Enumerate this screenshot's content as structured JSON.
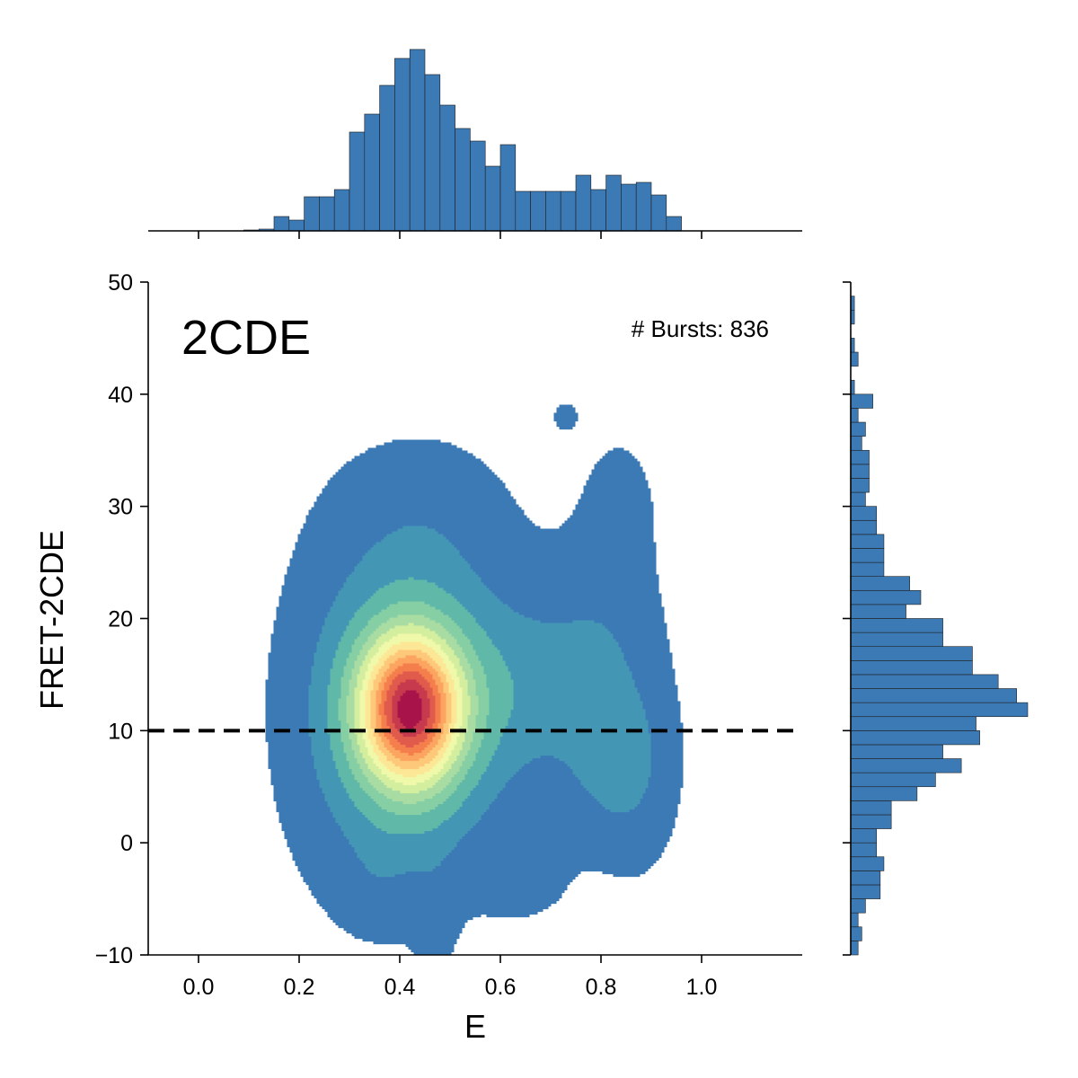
{
  "chart_data": {
    "type": "kde-joint",
    "xlabel": "E",
    "ylabel": "FRET-2CDE",
    "xlim": [
      -0.1,
      1.2
    ],
    "ylim": [
      -10,
      50
    ],
    "xticks": [
      0.0,
      0.2,
      0.4,
      0.6,
      0.8,
      1.0
    ],
    "xtick_labels": [
      "0.0",
      "0.2",
      "0.4",
      "0.6",
      "0.8",
      "1.0"
    ],
    "yticks": [
      -10,
      0,
      10,
      20,
      30,
      40,
      50
    ],
    "ytick_labels": [
      "−10",
      "0",
      "10",
      "20",
      "30",
      "40",
      "50"
    ],
    "annotation_label": "2CDE",
    "burst_text": "# Bursts: 836",
    "threshold_y": 10,
    "colormap": [
      "#3c7ab6",
      "#4397b5",
      "#5fb8a8",
      "#86cea4",
      "#a9dca3",
      "#d3ee9f",
      "#f0f8a9",
      "#fbe795",
      "#fdc879",
      "#fca561",
      "#f57e4d",
      "#e15b4c",
      "#c73a4e",
      "#a8144a"
    ],
    "kde_levels": [
      0.02,
      0.1,
      0.18,
      0.26,
      0.33,
      0.4,
      0.47,
      0.54,
      0.61,
      0.68,
      0.75,
      0.82,
      0.89,
      0.95
    ],
    "components": [
      {
        "e": 0.42,
        "c": 12.0,
        "se": 0.068,
        "sc": 4.6,
        "w": 1.0
      },
      {
        "e": 0.43,
        "c": 11.5,
        "se": 0.11,
        "sc": 8.0,
        "w": 0.45
      },
      {
        "e": 0.3,
        "c": 12.0,
        "se": 0.09,
        "sc": 10.0,
        "w": 0.1
      },
      {
        "e": 0.45,
        "c": 28.0,
        "se": 0.11,
        "sc": 5.0,
        "w": 0.09
      },
      {
        "e": 0.6,
        "c": 14.0,
        "se": 0.1,
        "sc": 6.0,
        "w": 0.12
      },
      {
        "e": 0.74,
        "c": 14.0,
        "se": 0.09,
        "sc": 6.0,
        "w": 0.13
      },
      {
        "e": 0.83,
        "c": 7.0,
        "se": 0.06,
        "sc": 4.5,
        "w": 0.15
      },
      {
        "e": 0.82,
        "c": 19.0,
        "se": 0.065,
        "sc": 9.0,
        "w": 0.07
      },
      {
        "e": 0.88,
        "c": 6.0,
        "se": 0.05,
        "sc": 6.0,
        "w": 0.05
      },
      {
        "e": 0.84,
        "c": 30.0,
        "se": 0.04,
        "sc": 3.5,
        "w": 0.05
      },
      {
        "e": 0.47,
        "c": -6.0,
        "se": 0.03,
        "sc": 4.5,
        "w": 0.05
      },
      {
        "e": 0.73,
        "c": 38.0,
        "se": 0.02,
        "sc": 1.0,
        "w": 0.05
      },
      {
        "e": 0.65,
        "c": -3.0,
        "se": 0.07,
        "sc": 3.0,
        "w": 0.05
      },
      {
        "e": 0.36,
        "c": -3.0,
        "se": 0.05,
        "sc": 3.0,
        "w": 0.05
      }
    ],
    "top_histogram": {
      "bin_width": 0.03,
      "bins": [
        {
          "x0": 0.09,
          "count": 0.5
        },
        {
          "x0": 0.12,
          "count": 1
        },
        {
          "x0": 0.15,
          "count": 8
        },
        {
          "x0": 0.18,
          "count": 6
        },
        {
          "x0": 0.21,
          "count": 19
        },
        {
          "x0": 0.24,
          "count": 19
        },
        {
          "x0": 0.27,
          "count": 23
        },
        {
          "x0": 0.3,
          "count": 55
        },
        {
          "x0": 0.33,
          "count": 65
        },
        {
          "x0": 0.36,
          "count": 81
        },
        {
          "x0": 0.39,
          "count": 96
        },
        {
          "x0": 0.42,
          "count": 101
        },
        {
          "x0": 0.45,
          "count": 87
        },
        {
          "x0": 0.48,
          "count": 70
        },
        {
          "x0": 0.51,
          "count": 57
        },
        {
          "x0": 0.54,
          "count": 50
        },
        {
          "x0": 0.57,
          "count": 36
        },
        {
          "x0": 0.6,
          "count": 48
        },
        {
          "x0": 0.63,
          "count": 22
        },
        {
          "x0": 0.66,
          "count": 22
        },
        {
          "x0": 0.69,
          "count": 22
        },
        {
          "x0": 0.72,
          "count": 22
        },
        {
          "x0": 0.75,
          "count": 31
        },
        {
          "x0": 0.78,
          "count": 23
        },
        {
          "x0": 0.81,
          "count": 31
        },
        {
          "x0": 0.84,
          "count": 26
        },
        {
          "x0": 0.87,
          "count": 27
        },
        {
          "x0": 0.9,
          "count": 20
        },
        {
          "x0": 0.93,
          "count": 8
        }
      ]
    },
    "right_histogram": {
      "bin_width": 1.25,
      "bins": [
        {
          "y0": -10.0,
          "count": 2
        },
        {
          "y0": -8.75,
          "count": 3
        },
        {
          "y0": -7.5,
          "count": 2
        },
        {
          "y0": -6.25,
          "count": 4
        },
        {
          "y0": -5.0,
          "count": 8
        },
        {
          "y0": -3.75,
          "count": 8
        },
        {
          "y0": -2.5,
          "count": 9
        },
        {
          "y0": -1.25,
          "count": 7
        },
        {
          "y0": 0.0,
          "count": 7
        },
        {
          "y0": 1.25,
          "count": 11
        },
        {
          "y0": 2.5,
          "count": 11
        },
        {
          "y0": 3.75,
          "count": 18
        },
        {
          "y0": 5.0,
          "count": 23
        },
        {
          "y0": 6.25,
          "count": 30
        },
        {
          "y0": 7.5,
          "count": 25
        },
        {
          "y0": 8.75,
          "count": 35
        },
        {
          "y0": 10.0,
          "count": 34
        },
        {
          "y0": 11.25,
          "count": 48
        },
        {
          "y0": 12.5,
          "count": 45
        },
        {
          "y0": 13.75,
          "count": 40
        },
        {
          "y0": 15.0,
          "count": 33
        },
        {
          "y0": 16.25,
          "count": 33
        },
        {
          "y0": 17.5,
          "count": 25
        },
        {
          "y0": 18.75,
          "count": 25
        },
        {
          "y0": 20.0,
          "count": 15
        },
        {
          "y0": 21.25,
          "count": 19
        },
        {
          "y0": 22.5,
          "count": 16
        },
        {
          "y0": 23.75,
          "count": 9
        },
        {
          "y0": 25.0,
          "count": 9
        },
        {
          "y0": 26.25,
          "count": 9
        },
        {
          "y0": 27.5,
          "count": 7
        },
        {
          "y0": 28.75,
          "count": 7
        },
        {
          "y0": 30.0,
          "count": 4
        },
        {
          "y0": 31.25,
          "count": 5
        },
        {
          "y0": 32.5,
          "count": 5
        },
        {
          "y0": 33.75,
          "count": 5
        },
        {
          "y0": 35.0,
          "count": 3
        },
        {
          "y0": 36.25,
          "count": 4
        },
        {
          "y0": 37.5,
          "count": 2
        },
        {
          "y0": 38.75,
          "count": 6
        },
        {
          "y0": 40.0,
          "count": 1
        },
        {
          "y0": 42.5,
          "count": 2
        },
        {
          "y0": 43.75,
          "count": 1
        },
        {
          "y0": 46.25,
          "count": 1
        },
        {
          "y0": 47.5,
          "count": 1
        }
      ]
    }
  }
}
